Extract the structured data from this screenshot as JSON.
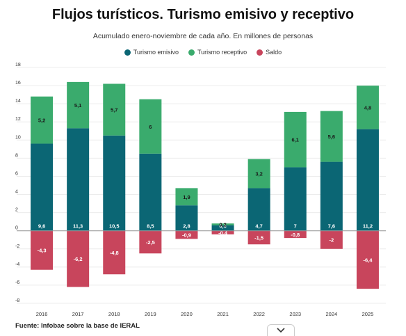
{
  "title": "Flujos turísticos. Turismo emisivo y receptivo",
  "subtitle": "Acumulado enero-noviembre de cada año. En millones de personas",
  "source": "Fuente: Infobae sobre la base de IERAL",
  "colors": {
    "emisivo": "#0b6674",
    "receptivo": "#3aab6d",
    "saldo": "#c8455c"
  },
  "chart_data": {
    "type": "bar",
    "stacked": true,
    "title": "Flujos turísticos. Turismo emisivo y receptivo",
    "subtitle": "Acumulado enero-noviembre de cada año. En millones de personas",
    "categories": [
      "2016",
      "2017",
      "2018",
      "2019",
      "2020",
      "2021",
      "2022",
      "2023",
      "2024",
      "2025"
    ],
    "series": [
      {
        "name": "Turismo emisivo",
        "color": "#0b6674",
        "values": [
          9.6,
          11.3,
          10.5,
          8.5,
          2.8,
          0.6,
          4.7,
          7,
          7.6,
          11.2
        ],
        "labels": [
          "9,6",
          "11,3",
          "10,5",
          "8,5",
          "2,8",
          "0,6",
          "4,7",
          "7",
          "7,6",
          "11,2"
        ]
      },
      {
        "name": "Turismo receptivo",
        "color": "#3aab6d",
        "values": [
          5.2,
          5.1,
          5.7,
          6,
          1.9,
          0.2,
          3.2,
          6.1,
          5.6,
          4.8
        ],
        "labels": [
          "5,2",
          "5,1",
          "5,7",
          "6",
          "1,9",
          "0,2",
          "3,2",
          "6,1",
          "5,6",
          "4,8"
        ]
      },
      {
        "name": "Saldo",
        "color": "#c8455c",
        "values": [
          -4.3,
          -6.2,
          -4.8,
          -2.5,
          -0.9,
          -0.4,
          -1.5,
          -0.8,
          -2,
          -6.4
        ],
        "labels": [
          "-4,3",
          "-6,2",
          "-4,8",
          "-2,5",
          "-0,9",
          "-0,4",
          "-1,5",
          "-0,8",
          "-2",
          "-6,4"
        ]
      }
    ],
    "ylim": [
      -8,
      18
    ],
    "yticks": [
      -8,
      -6,
      -4,
      -2,
      0,
      2,
      4,
      6,
      8,
      10,
      12,
      14,
      16,
      18
    ],
    "grid": true,
    "legend": "top-center"
  }
}
